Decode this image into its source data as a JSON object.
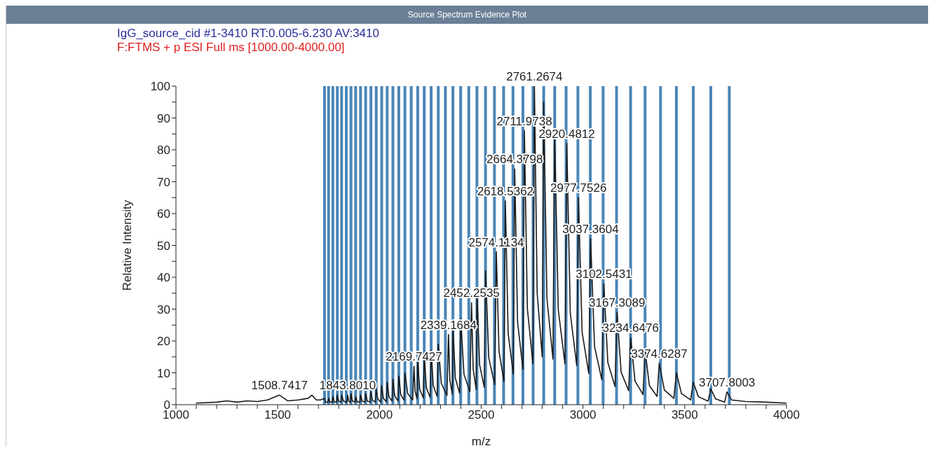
{
  "chart_data": {
    "type": "line",
    "title": "Source Spectrum Evidence Plot",
    "subtitle": "IgG_source_cid #1-3410  RT:0.005-6.230 AV:3410",
    "xlabel": "m/z",
    "ylabel": "Relative Intensity",
    "xlim": [
      1000,
      4000
    ],
    "ylim": [
      0,
      100
    ],
    "xticks": [
      1000,
      {
        "value": 1100,
        "label": null
      },
      {
        "value": 1200,
        "label": null
      },
      {
        "value": 1300,
        "label": null
      },
      {
        "value": 1400,
        "label": null
      },
      1500,
      {
        "value": 1600,
        "label": null
      },
      {
        "value": 1700,
        "label": null
      },
      {
        "value": 1800,
        "label": null
      },
      {
        "value": 1900,
        "label": null
      },
      2000,
      {
        "value": 2100,
        "label": null
      },
      {
        "value": 2200,
        "label": null
      },
      {
        "value": 2300,
        "label": null
      },
      {
        "value": 2400,
        "label": null
      },
      2500,
      {
        "value": 2600,
        "label": null
      },
      {
        "value": 2700,
        "label": null
      },
      {
        "value": 2800,
        "label": null
      },
      {
        "value": 2900,
        "label": null
      },
      3000,
      {
        "value": 3100,
        "label": null
      },
      {
        "value": 3200,
        "label": null
      },
      {
        "value": 3300,
        "label": null
      },
      {
        "value": 3400,
        "label": null
      },
      3500,
      {
        "value": 3600,
        "label": null
      },
      {
        "value": 3700,
        "label": null
      },
      {
        "value": 3800,
        "label": null
      },
      {
        "value": 3900,
        "label": null
      },
      4000
    ],
    "yticks": [
      0,
      {
        "value": 5,
        "label": null
      },
      10,
      {
        "value": 15,
        "label": null
      },
      20,
      {
        "value": 25,
        "label": null
      },
      30,
      {
        "value": 35,
        "label": null
      },
      40,
      {
        "value": 45,
        "label": null
      },
      50,
      {
        "value": 55,
        "label": null
      },
      60,
      {
        "value": 65,
        "label": null
      },
      70,
      {
        "value": 75,
        "label": null
      },
      80,
      {
        "value": 85,
        "label": null
      },
      90,
      {
        "value": 95,
        "label": null
      },
      100
    ],
    "grid": false,
    "marker": "none",
    "series": [
      {
        "type": "line",
        "color": "#1a1a1a",
        "line_style": "solid",
        "x": [
          1100,
          1200,
          1250,
          1300,
          1350,
          1400,
          1450,
          1508.7,
          1550,
          1600,
          1650,
          1668,
          1690,
          1710,
          1730.1,
          1736.2,
          1747.4,
          1750.4,
          1756.6,
          1768.1,
          1771.2,
          1777.6,
          1789.4,
          1792.6,
          1799.1,
          1811.1,
          1814.4,
          1823.2,
          1839.4,
          1843.8,
          1848.6,
          1857.4,
          1859.8,
          1866.9,
          1879.8,
          1883.3,
          1890.5,
          1903.8,
          1907.4,
          1914.8,
          1928.5,
          1932.2,
          1939.8,
          1953.8,
          1957.6,
          1965.4,
          1979.8,
          1983.7,
          1991.7,
          2006.5,
          2010.5,
          2018.8,
          2033.9,
          2038,
          2046.5,
          2062.1,
          2066.3,
          2075,
          2091,
          2095.4,
          2104.4,
          2120.8,
          2125.3,
          2138.6,
          2163,
          2169.7,
          2175.1,
          2185.1,
          2187.8,
          2197.6,
          2215.5,
          2220.4,
          2230.5,
          2249,
          2254,
          2264.4,
          2283.5,
          2288.7,
          2303.9,
          2331.6,
          2339.2,
          2345.8,
          2358,
          2361.3,
          2372.7,
          2393.7,
          2399.4,
          2415.3,
          2444.4,
          2452.3,
          2460.4,
          2475.3,
          2479.3,
          2491.9,
          2515,
          2521.3,
          2537.1,
          2566.2,
          2574.1,
          2587.4,
          2611.8,
          2618.5,
          2632.3,
          2657.5,
          2664.4,
          2678.7,
          2704.9,
          2712,
          2726.8,
          2753.9,
          2761.3,
          2774.9,
          2799.9,
          2806.7,
          2822.9,
          2852.5,
          2860.6,
          2878.6,
          2911.5,
          2920.5,
          2937.7,
          2969.2,
          2977.8,
          2995.7,
          3028.5,
          3037.4,
          3056.9,
          3092.7,
          3102.5,
          3122,
          3157.6,
          3167.3,
          3187.5,
          3224.5,
          3234.6,
          3255.8,
          3294.8,
          3305.4,
          3326.2,
          3364.2,
          3374.6,
          3400,
          3446.4,
          3459.1,
          3483.8,
          3529.1,
          3541.5,
          3567.4,
          3614.9,
          3627.8,
          3651.8,
          3695.8,
          3707.8,
          3730,
          3800,
          3900,
          4000
        ],
        "values": [
          0.5,
          0.8,
          1.2,
          0.8,
          1.2,
          1,
          1.5,
          3,
          1.2,
          1.5,
          2,
          3,
          1.5,
          1.5,
          2,
          0.8,
          0.8,
          2,
          0.8,
          0.8,
          2.5,
          0.9,
          0.8,
          3,
          1.1,
          0.8,
          3,
          1.1,
          0.8,
          3,
          1.1,
          0.8,
          3.5,
          1.2,
          0.8,
          2.5,
          0.9,
          0.8,
          3,
          1.1,
          0.8,
          3.5,
          1.2,
          0.8,
          4,
          1.4,
          0.8,
          5,
          1.8,
          0.8,
          6,
          2.1,
          0.9,
          7,
          2.5,
          1.1,
          8,
          2.8,
          1.2,
          9,
          3.2,
          1.4,
          10,
          3.5,
          1.5,
          12,
          4.2,
          1.8,
          14,
          4.9,
          2.1,
          15,
          5.3,
          2.3,
          17,
          6,
          2.6,
          19,
          6.7,
          2.9,
          22,
          7.7,
          3.3,
          24,
          8.4,
          3.6,
          27,
          9.5,
          4.1,
          32,
          11.2,
          4.8,
          36,
          12.6,
          5.4,
          42,
          14.7,
          6.3,
          48,
          16.8,
          7.2,
          64,
          22.4,
          9.6,
          74,
          25.9,
          11.1,
          86,
          30.1,
          12.9,
          100,
          35,
          15,
          95,
          33.3,
          14.3,
          85,
          29.8,
          12.8,
          82,
          28.7,
          12.3,
          65,
          22.8,
          9.8,
          52,
          18.2,
          7.8,
          38,
          13.3,
          5.7,
          29,
          10.2,
          4.4,
          21,
          7.4,
          3.2,
          17,
          6,
          2.6,
          13,
          4.6,
          2,
          10,
          3.5,
          1.5,
          7,
          2.5,
          1.1,
          5,
          1.8,
          0.8,
          4,
          1.5,
          1,
          0.8,
          0.5
        ]
      }
    ],
    "ref_lines": [
      {
        "axis": "x",
        "value": 1730,
        "color": "#4a86b8"
      },
      {
        "axis": "x",
        "value": 1750,
        "color": "#4a86b8"
      },
      {
        "axis": "x",
        "value": 1771,
        "color": "#4a86b8"
      },
      {
        "axis": "x",
        "value": 1793,
        "color": "#4a86b8"
      },
      {
        "axis": "x",
        "value": 1814,
        "color": "#4a86b8"
      },
      {
        "axis": "x",
        "value": 1837,
        "color": "#4a86b8"
      },
      {
        "axis": "x",
        "value": 1860,
        "color": "#4a86b8"
      },
      {
        "axis": "x",
        "value": 1883,
        "color": "#4a86b8"
      },
      {
        "axis": "x",
        "value": 1907,
        "color": "#4a86b8"
      },
      {
        "axis": "x",
        "value": 1932,
        "color": "#4a86b8"
      },
      {
        "axis": "x",
        "value": 1958,
        "color": "#4a86b8"
      },
      {
        "axis": "x",
        "value": 1984,
        "color": "#4a86b8"
      },
      {
        "axis": "x",
        "value": 2011,
        "color": "#4a86b8"
      },
      {
        "axis": "x",
        "value": 2038,
        "color": "#4a86b8"
      },
      {
        "axis": "x",
        "value": 2066,
        "color": "#4a86b8"
      },
      {
        "axis": "x",
        "value": 2095,
        "color": "#4a86b8"
      },
      {
        "axis": "x",
        "value": 2125,
        "color": "#4a86b8"
      },
      {
        "axis": "x",
        "value": 2156,
        "color": "#4a86b8"
      },
      {
        "axis": "x",
        "value": 2188,
        "color": "#4a86b8"
      },
      {
        "axis": "x",
        "value": 2220,
        "color": "#4a86b8"
      },
      {
        "axis": "x",
        "value": 2254,
        "color": "#4a86b8"
      },
      {
        "axis": "x",
        "value": 2289,
        "color": "#4a86b8"
      },
      {
        "axis": "x",
        "value": 2324,
        "color": "#4a86b8"
      },
      {
        "axis": "x",
        "value": 2361,
        "color": "#4a86b8"
      },
      {
        "axis": "x",
        "value": 2399,
        "color": "#4a86b8"
      },
      {
        "axis": "x",
        "value": 2439,
        "color": "#4a86b8"
      },
      {
        "axis": "x",
        "value": 2479,
        "color": "#4a86b8"
      },
      {
        "axis": "x",
        "value": 2521,
        "color": "#4a86b8"
      },
      {
        "axis": "x",
        "value": 2565,
        "color": "#4a86b8"
      },
      {
        "axis": "x",
        "value": 2610,
        "color": "#4a86b8"
      },
      {
        "axis": "x",
        "value": 2656,
        "color": "#4a86b8"
      },
      {
        "axis": "x",
        "value": 2705,
        "color": "#4a86b8"
      },
      {
        "axis": "x",
        "value": 2755,
        "color": "#4a86b8"
      },
      {
        "axis": "x",
        "value": 2807,
        "color": "#4a86b8"
      },
      {
        "axis": "x",
        "value": 2861,
        "color": "#4a86b8"
      },
      {
        "axis": "x",
        "value": 2917,
        "color": "#4a86b8"
      },
      {
        "axis": "x",
        "value": 2975,
        "color": "#4a86b8"
      },
      {
        "axis": "x",
        "value": 3036,
        "color": "#4a86b8"
      },
      {
        "axis": "x",
        "value": 3099,
        "color": "#4a86b8"
      },
      {
        "axis": "x",
        "value": 3165,
        "color": "#4a86b8"
      },
      {
        "axis": "x",
        "value": 3234,
        "color": "#4a86b8"
      },
      {
        "axis": "x",
        "value": 3305,
        "color": "#4a86b8"
      },
      {
        "axis": "x",
        "value": 3381,
        "color": "#4a86b8"
      },
      {
        "axis": "x",
        "value": 3459,
        "color": "#4a86b8"
      },
      {
        "axis": "x",
        "value": 3542,
        "color": "#4a86b8"
      },
      {
        "axis": "x",
        "value": 3628,
        "color": "#4a86b8"
      },
      {
        "axis": "x",
        "value": 3719,
        "color": "#4a86b8"
      }
    ],
    "annotations": [
      "F:FTMS + p ESI  Full ms [1000.00-4000.00]",
      {
        "text": "1508.7417",
        "x": 1508.7,
        "y": 3
      },
      {
        "text": "1843.8010",
        "x": 1843.8,
        "y": 3
      },
      {
        "text": "2169.7427",
        "x": 2169.7,
        "y": 12
      },
      {
        "text": "2339.1684",
        "x": 2339.2,
        "y": 22
      },
      {
        "text": "2452.2535",
        "x": 2452.3,
        "y": 32
      },
      {
        "text": "2574.1134",
        "x": 2574.1,
        "y": 48
      },
      {
        "text": "2618.5362",
        "x": 2618.5,
        "y": 64
      },
      {
        "text": "2664.3798",
        "x": 2664.4,
        "y": 74
      },
      {
        "text": "2711.9738",
        "x": 2712,
        "y": 86
      },
      {
        "text": "2761.2674",
        "x": 2761.3,
        "y": 100
      },
      {
        "text": "2920.4812",
        "x": 2920.5,
        "y": 82
      },
      {
        "text": "2977.7526",
        "x": 2977.8,
        "y": 65
      },
      {
        "text": "3037.3604",
        "x": 3037.4,
        "y": 52
      },
      {
        "text": "3102.5431",
        "x": 3102.5,
        "y": 38
      },
      {
        "text": "3167.3089",
        "x": 3167.3,
        "y": 29
      },
      {
        "text": "3234.6476",
        "x": 3234.6,
        "y": 21
      },
      {
        "text": "3374.6287",
        "x": 3374.6,
        "y": 13
      },
      {
        "text": "3707.8003",
        "x": 3707.8,
        "y": 4
      }
    ]
  }
}
